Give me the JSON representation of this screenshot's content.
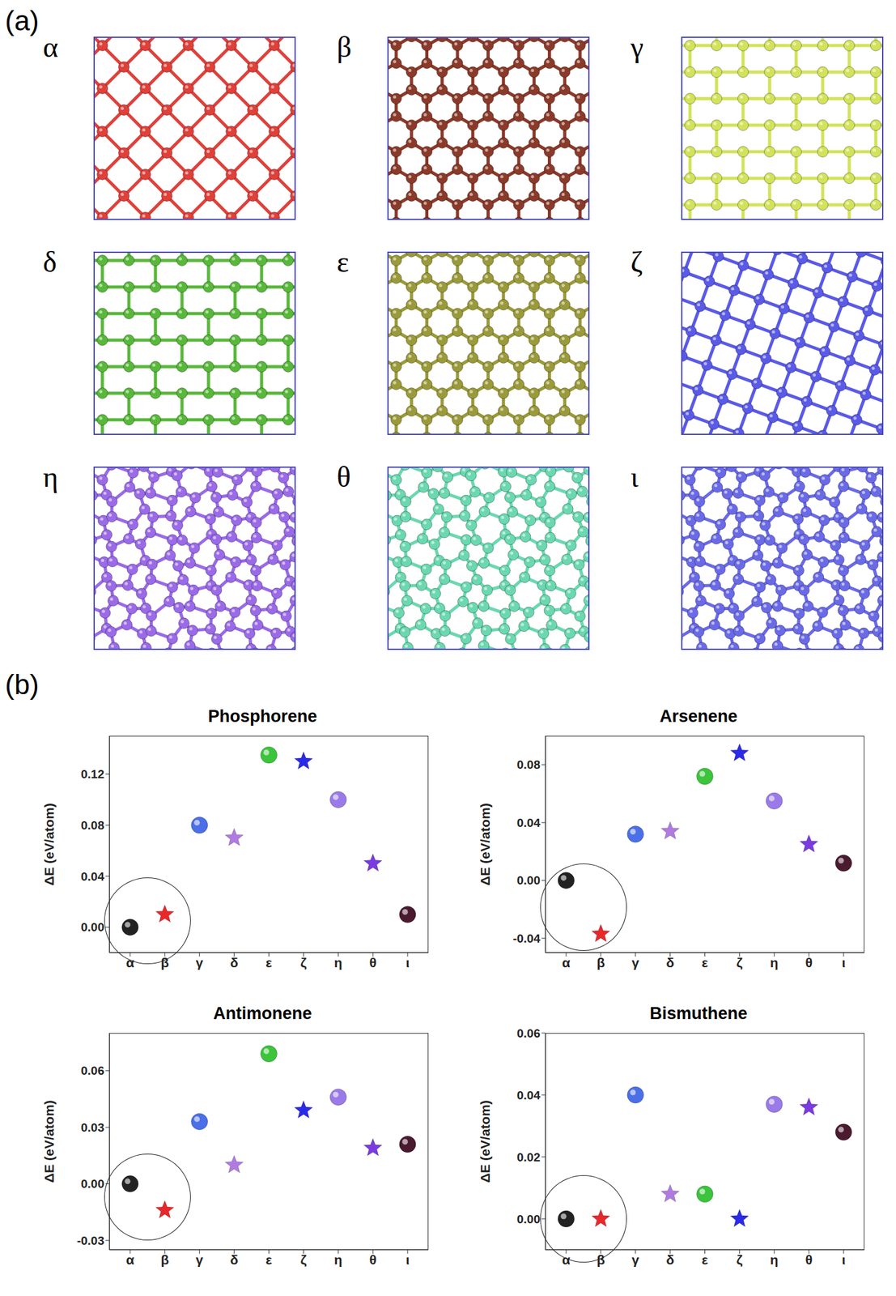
{
  "panels": {
    "a": {
      "label": "(a)",
      "structures": [
        {
          "label": "α",
          "color": "#e0403a"
        },
        {
          "label": "β",
          "color": "#8b3a2a"
        },
        {
          "label": "γ",
          "color": "#d2e35a"
        },
        {
          "label": "δ",
          "color": "#58b83a"
        },
        {
          "label": "ε",
          "color": "#9a9a3a"
        },
        {
          "label": "ζ",
          "color": "#5a5ae8"
        },
        {
          "label": "η",
          "color": "#9a6ae8"
        },
        {
          "label": "θ",
          "color": "#6ad8b0"
        },
        {
          "label": "ι",
          "color": "#6a6ae8"
        }
      ]
    },
    "b": {
      "label": "(b)"
    }
  },
  "chart_data": [
    {
      "type": "scatter",
      "title": "Phosphorene",
      "y_label": "ΔE (eV/atom)",
      "categories": [
        "α",
        "β",
        "γ",
        "δ",
        "ε",
        "ζ",
        "η",
        "θ",
        "ι"
      ],
      "ylim": [
        -0.02,
        0.15
      ],
      "yticks": [
        {
          "value": 0,
          "label": "0.00"
        },
        0.04,
        0.08,
        0.12
      ],
      "series": [
        {
          "marker": "circle",
          "values": [
            0,
            null,
            0.08,
            null,
            0.135,
            null,
            0.1,
            null,
            0.01
          ],
          "colors": [
            "#222222",
            null,
            "#4a6fe8",
            null,
            "#3cc43c",
            null,
            "#9a7ae8",
            null,
            "#4a1a2e"
          ]
        },
        {
          "marker": "star",
          "values": [
            null,
            0.01,
            null,
            0.07,
            null,
            0.13,
            null,
            0.05,
            null
          ],
          "colors": [
            null,
            "#e8282b",
            null,
            "#b07be0",
            null,
            "#2a2ae8",
            null,
            "#7a3ae0",
            null
          ]
        }
      ]
    },
    {
      "type": "scatter",
      "title": "Arsenene",
      "y_label": "ΔE (eV/atom)",
      "categories": [
        "α",
        "β",
        "γ",
        "δ",
        "ε",
        "ζ",
        "η",
        "θ",
        "ι"
      ],
      "ylim": [
        -0.05,
        0.1
      ],
      "yticks": [
        -0.04,
        {
          "value": 0,
          "label": "0.00"
        },
        0.04,
        0.08
      ],
      "series": [
        {
          "marker": "circle",
          "values": [
            0,
            null,
            0.032,
            null,
            0.072,
            null,
            0.055,
            null,
            0.012
          ],
          "colors": [
            "#222222",
            null,
            "#4a6fe8",
            null,
            "#3cc43c",
            null,
            "#9a7ae8",
            null,
            "#4a1a2e"
          ]
        },
        {
          "marker": "star",
          "values": [
            null,
            -0.037,
            null,
            0.034,
            null,
            0.088,
            null,
            0.025,
            null
          ],
          "colors": [
            null,
            "#e8282b",
            null,
            "#b07be0",
            null,
            "#2a2ae8",
            null,
            "#7a3ae0",
            null
          ]
        }
      ]
    },
    {
      "type": "scatter",
      "title": "Antimonene",
      "y_label": "ΔE (eV/atom)",
      "categories": [
        "α",
        "β",
        "γ",
        "δ",
        "ε",
        "ζ",
        "η",
        "θ",
        "ι"
      ],
      "ylim": [
        -0.035,
        0.08
      ],
      "yticks": [
        -0.03,
        {
          "value": 0,
          "label": "0.00"
        },
        0.03,
        0.06
      ],
      "series": [
        {
          "marker": "circle",
          "values": [
            0,
            null,
            0.033,
            null,
            0.069,
            null,
            0.046,
            null,
            0.021
          ],
          "colors": [
            "#222222",
            null,
            "#4a6fe8",
            null,
            "#3cc43c",
            null,
            "#9a7ae8",
            null,
            "#4a1a2e"
          ]
        },
        {
          "marker": "star",
          "values": [
            null,
            -0.014,
            null,
            0.01,
            null,
            0.039,
            null,
            0.019,
            null
          ],
          "colors": [
            null,
            "#e8282b",
            null,
            "#b07be0",
            null,
            "#2a2ae8",
            null,
            "#7a3ae0",
            null
          ]
        }
      ]
    },
    {
      "type": "scatter",
      "title": "Bismuthene",
      "y_label": "ΔE (eV/atom)",
      "categories": [
        "α",
        "β",
        "γ",
        "δ",
        "ε",
        "ζ",
        "η",
        "θ",
        "ι"
      ],
      "ylim": [
        -0.01,
        0.06
      ],
      "yticks": [
        {
          "value": 0,
          "label": "0.00"
        },
        0.02,
        0.04,
        0.06
      ],
      "series": [
        {
          "marker": "circle",
          "values": [
            0,
            null,
            0.04,
            null,
            0.008,
            null,
            0.037,
            null,
            0.028
          ],
          "colors": [
            "#222222",
            null,
            "#4a6fe8",
            null,
            "#3cc43c",
            null,
            "#9a7ae8",
            null,
            "#4a1a2e"
          ]
        },
        {
          "marker": "star",
          "values": [
            null,
            0,
            null,
            0.008,
            null,
            0,
            null,
            0.036,
            null
          ],
          "colors": [
            null,
            "#e8282b",
            null,
            "#b07be0",
            null,
            "#2a2ae8",
            null,
            "#7a3ae0",
            null
          ]
        }
      ]
    }
  ]
}
